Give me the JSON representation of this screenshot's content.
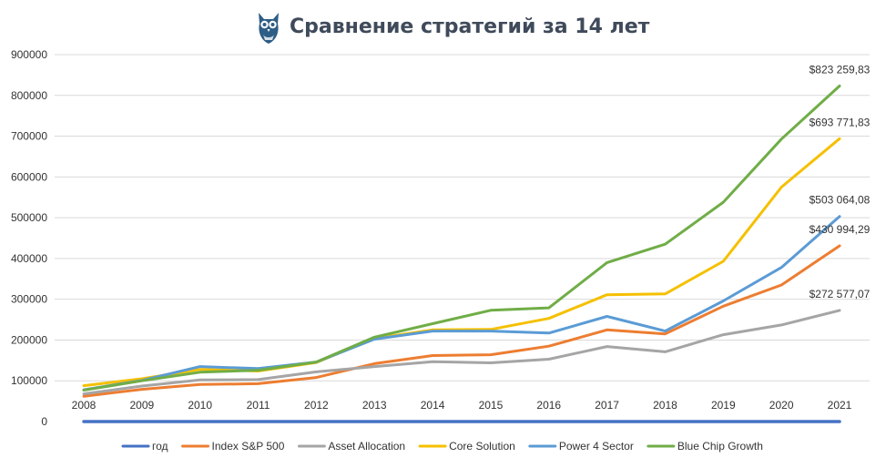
{
  "chart_data": {
    "type": "line",
    "title": "Сравнение стратегий за 14 лет",
    "xlabel": "",
    "ylabel": "",
    "x": [
      "2008",
      "2009",
      "2010",
      "2011",
      "2012",
      "2013",
      "2014",
      "2015",
      "2016",
      "2017",
      "2018",
      "2019",
      "2020",
      "2021"
    ],
    "ylim": [
      0,
      900000
    ],
    "yticks": [
      "0",
      "100000",
      "200000",
      "300000",
      "400000",
      "500000",
      "600000",
      "700000",
      "800000",
      "900000"
    ],
    "grid": true,
    "legend_position": "bottom",
    "series": [
      {
        "name": "год",
        "color": "#4472c4",
        "values": [
          0,
          0,
          0,
          0,
          0,
          0,
          0,
          0,
          0,
          0,
          0,
          0,
          0,
          0
        ]
      },
      {
        "name": "Index S&P 500",
        "color": "#ed7d31",
        "values": [
          62000,
          79000,
          91000,
          93000,
          108000,
          142000,
          162000,
          164000,
          185000,
          225000,
          215000,
          283000,
          335000,
          430994.29
        ],
        "end_label": "$430 994,29"
      },
      {
        "name": "Asset Allocation",
        "color": "#a5a5a5",
        "values": [
          68000,
          87000,
          102000,
          103000,
          122000,
          135000,
          147000,
          144000,
          153000,
          184000,
          171000,
          213000,
          237000,
          272577.07
        ],
        "end_label": "$272 577,07"
      },
      {
        "name": "Core Solution",
        "color": "#f5c000",
        "values": [
          88000,
          105000,
          128000,
          124000,
          145000,
          204000,
          225000,
          226000,
          253000,
          311000,
          313000,
          393000,
          575000,
          693771.83
        ],
        "end_label": "$693 771,83"
      },
      {
        "name": "Power 4 Sector",
        "color": "#5b9bd5",
        "values": [
          78000,
          101000,
          135000,
          130000,
          146000,
          202000,
          222000,
          222000,
          217000,
          258000,
          222000,
          296000,
          378000,
          503064.08
        ],
        "end_label": "$503 064,08"
      },
      {
        "name": "Blue Chip Growth",
        "color": "#70ad47",
        "values": [
          77000,
          100000,
          121000,
          126000,
          146000,
          207000,
          240000,
          273000,
          279000,
          390000,
          435000,
          538000,
          693000,
          823259.83
        ],
        "end_label": "$823 259,83"
      }
    ]
  }
}
